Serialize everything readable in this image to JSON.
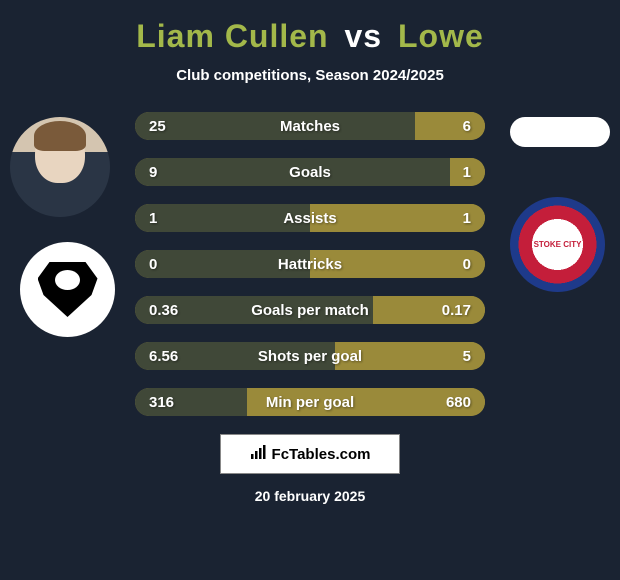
{
  "header": {
    "player1": "Liam Cullen",
    "vs": "vs",
    "player2": "Lowe"
  },
  "subtitle": "Club competitions, Season 2024/2025",
  "colors": {
    "background": "#1a2332",
    "bar_primary": "#9a8a3a",
    "bar_secondary": "#404838",
    "text": "#ffffff",
    "accent": "#a3b84a"
  },
  "stats": [
    {
      "label": "Matches",
      "left_value": "25",
      "right_value": "6",
      "left_pct": 80,
      "right_pct": 20
    },
    {
      "label": "Goals",
      "left_value": "9",
      "right_value": "1",
      "left_pct": 90,
      "right_pct": 10
    },
    {
      "label": "Assists",
      "left_value": "1",
      "right_value": "1",
      "left_pct": 50,
      "right_pct": 50
    },
    {
      "label": "Hattricks",
      "left_value": "0",
      "right_value": "0",
      "left_pct": 50,
      "right_pct": 50
    },
    {
      "label": "Goals per match",
      "left_value": "0.36",
      "right_value": "0.17",
      "left_pct": 68,
      "right_pct": 32
    },
    {
      "label": "Shots per goal",
      "left_value": "6.56",
      "right_value": "5",
      "left_pct": 57,
      "right_pct": 43
    },
    {
      "label": "Min per goal",
      "left_value": "316",
      "right_value": "680",
      "left_pct": 32,
      "right_pct": 68
    }
  ],
  "footer": {
    "site_name": "FcTables.com",
    "date": "20 february 2025"
  },
  "clubs": {
    "left_club": "Swansea City",
    "right_club": "Stoke City",
    "right_club_short": "STOKE CITY"
  }
}
